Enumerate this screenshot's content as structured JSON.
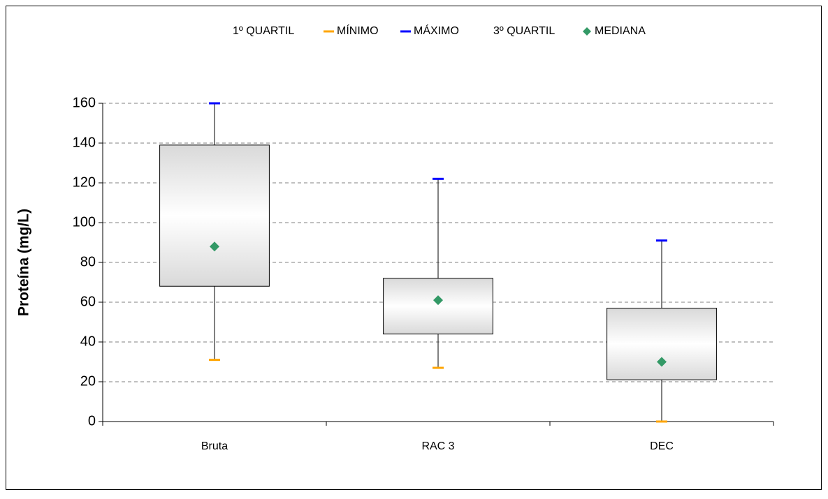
{
  "chart_data": {
    "type": "box",
    "ylabel": "Proteína (mg/L)",
    "categories": [
      "Bruta",
      "RAC 3",
      "DEC"
    ],
    "series": [
      {
        "name": "1º QUARTIL",
        "values": [
          68,
          44,
          21
        ]
      },
      {
        "name": "MÍNIMO",
        "color": "#ffa500",
        "values": [
          31,
          27,
          0
        ]
      },
      {
        "name": "MÁXIMO",
        "color": "#0000ff",
        "values": [
          160,
          122,
          91
        ]
      },
      {
        "name": "3º QUARTIL",
        "values": [
          139,
          72,
          57
        ]
      },
      {
        "name": "MEDIANA",
        "color": "#339966",
        "values": [
          88,
          61,
          30
        ]
      }
    ],
    "ylim": [
      0,
      160
    ],
    "yticks": [
      0,
      20,
      40,
      60,
      80,
      100,
      120,
      140,
      160
    ],
    "grid": true
  }
}
